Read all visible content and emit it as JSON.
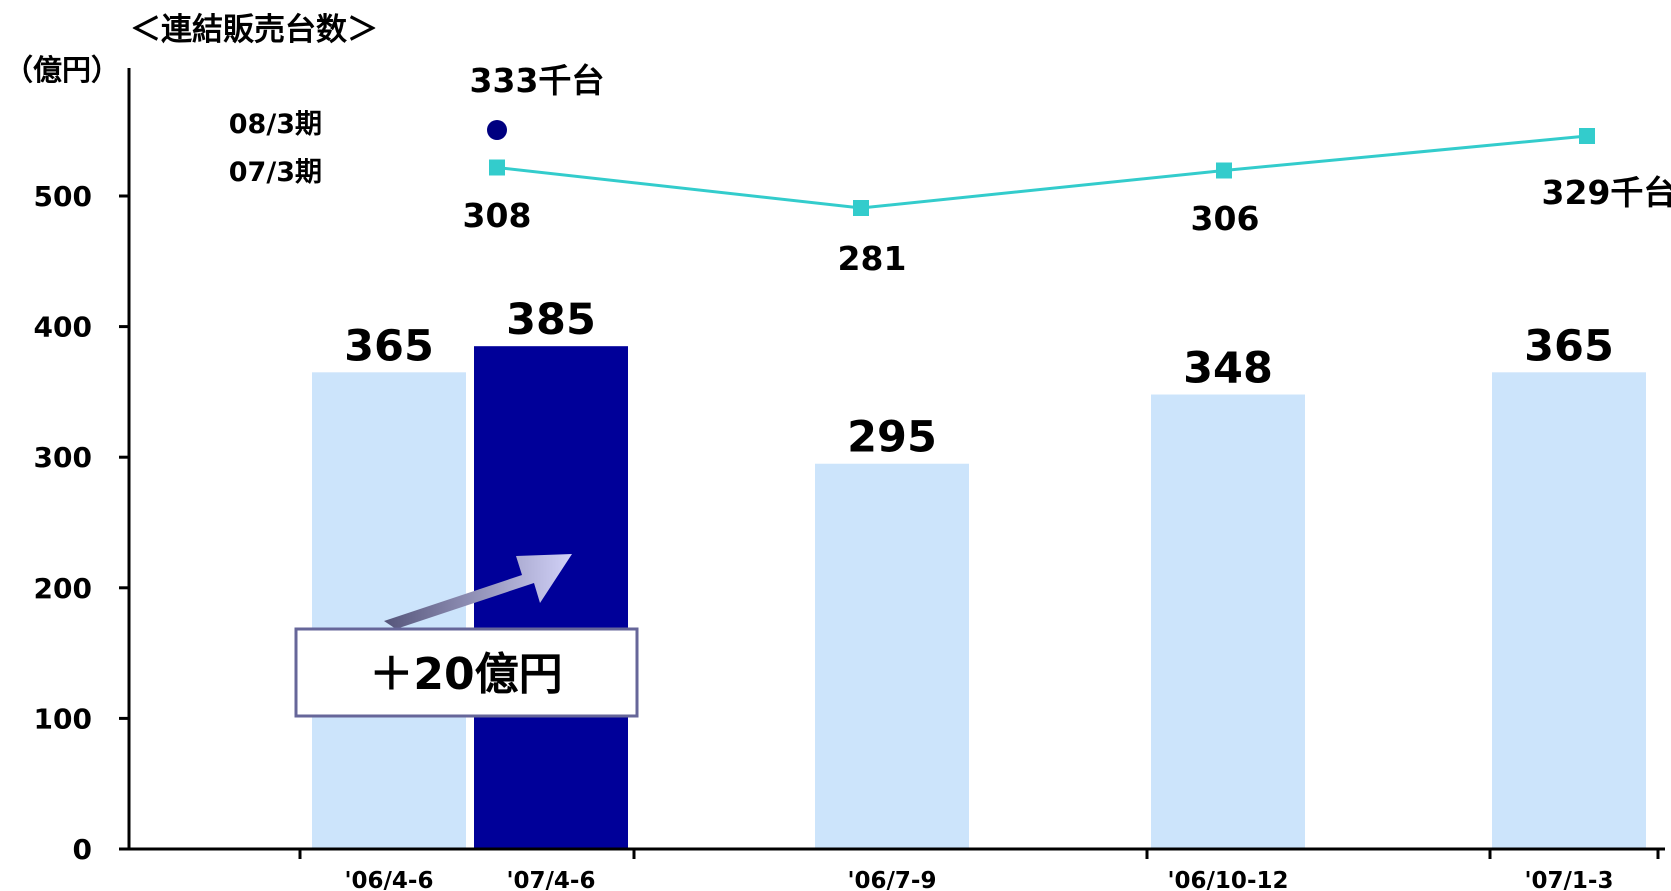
{
  "chart_data": {
    "type": "bar",
    "title": "＜連結販売台数＞",
    "ylabel": "（億円）",
    "ylim": [
      0,
      500
    ],
    "yticks": [
      "0",
      "100",
      "200",
      "300",
      "400",
      "500"
    ],
    "categories": [
      "'06/4-6",
      "'07/4-6",
      "'06/7-9",
      "'06/10-12",
      "'07/1-3"
    ],
    "series": [
      {
        "name": "07/3期",
        "values": [
          365,
          null,
          295,
          348,
          365
        ],
        "labels": [
          "365",
          "",
          "295",
          "348",
          "365"
        ],
        "color": "#cce4fb"
      },
      {
        "name": "08/3期",
        "values": [
          null,
          385,
          null,
          null,
          null
        ],
        "labels": [
          "",
          "385",
          "",
          "",
          ""
        ],
        "color": "#000099"
      }
    ],
    "units_series": [
      {
        "name": "07/3期",
        "type": "line",
        "marker": "square",
        "color": "#33cccc",
        "values": [
          308,
          281,
          306,
          329
        ],
        "labels": [
          "308",
          "281",
          "306",
          "329千台"
        ]
      },
      {
        "name": "08/3期",
        "type": "scatter",
        "marker": "circle",
        "color": "#000080",
        "values": [
          333
        ],
        "labels": [
          "333千台"
        ]
      }
    ],
    "annotation": "＋20億円",
    "grid": false
  }
}
